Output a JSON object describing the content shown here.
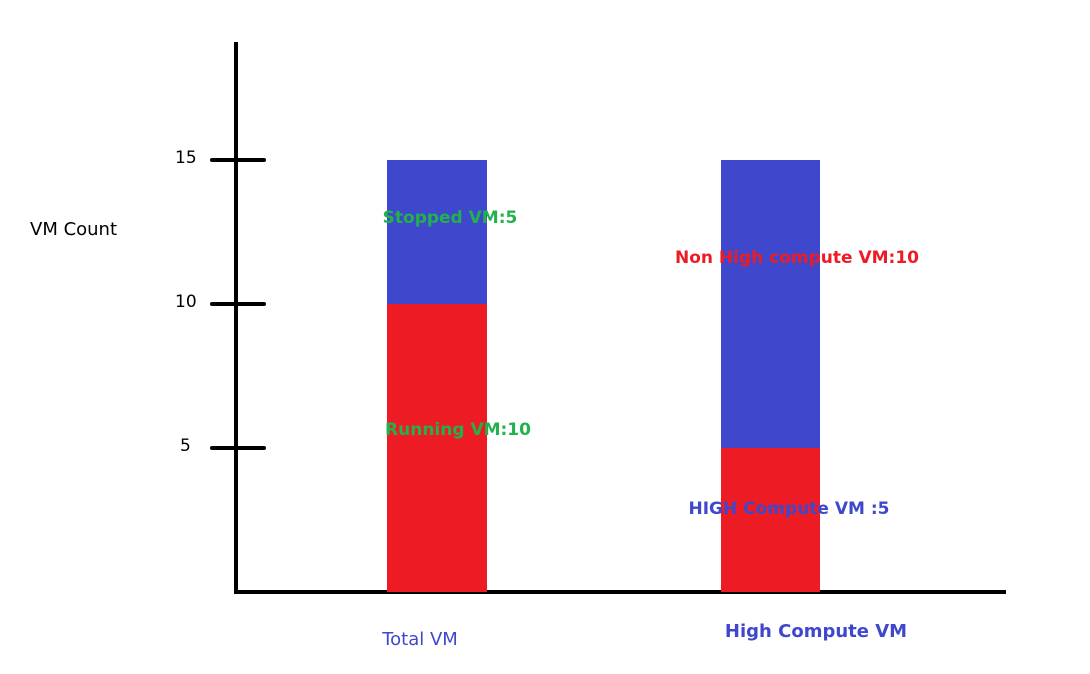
{
  "chart_data": {
    "type": "bar",
    "stacked": true,
    "title": "",
    "xlabel": "",
    "ylabel": "VM Count",
    "ylim": [
      0,
      17
    ],
    "yticks": [
      5,
      10,
      15
    ],
    "grid": false,
    "categories": [
      "Total VM",
      "High Compute VM"
    ],
    "bars": [
      {
        "category": "Total VM",
        "segments": [
          {
            "name": "Running VM",
            "value": 10,
            "label": "Running VM:10",
            "color": "#ED1C24",
            "label_color": "#22B14C"
          },
          {
            "name": "Stopped VM",
            "value": 5,
            "label": "Stopped VM:5",
            "color": "#3F48CC",
            "label_color": "#22B14C"
          }
        ]
      },
      {
        "category": "High Compute VM",
        "segments": [
          {
            "name": "HIGH Compute VM",
            "value": 5,
            "label": "HIGH Compute VM :5",
            "color": "#ED1C24",
            "label_color": "#3F48CC"
          },
          {
            "name": "Non High compute VM",
            "value": 10,
            "label": "Non High compute VM:10",
            "color": "#3F48CC",
            "label_color": "#ED1C24"
          }
        ]
      }
    ],
    "category_label_color": "#3F48CC"
  }
}
